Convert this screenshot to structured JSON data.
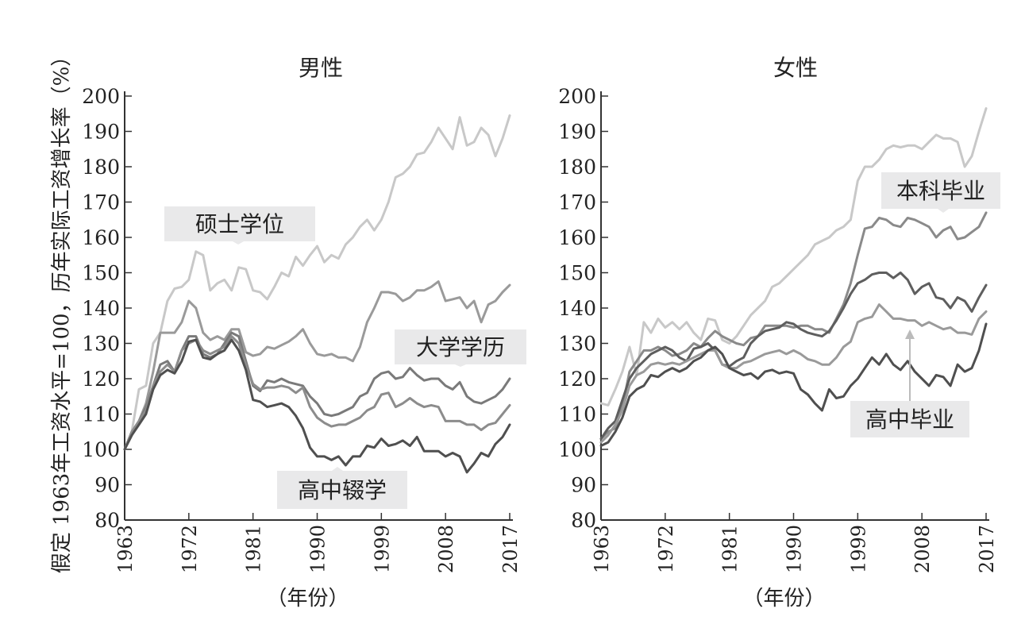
{
  "ylabel": "假定 1963年工资水平=100，历年实际工资增长率（%）",
  "xlabel": "（年份）",
  "colors": {
    "axis": "#333333",
    "label_box": "#e9e9ea",
    "series_lightest": "#c8c8c8",
    "series_light": "#9a9a9a",
    "series_mid": "#7a7a7a",
    "series_dark": "#4f4f4f"
  },
  "chart_data": [
    {
      "type": "line",
      "title": "男性",
      "x_ticks": [
        "1963",
        "1972",
        "1981",
        "1990",
        "1999",
        "2008",
        "2017"
      ],
      "y_ticks": [
        "80",
        "90",
        "100",
        "110",
        "120",
        "130",
        "140",
        "150",
        "160",
        "170",
        "180",
        "190",
        "200"
      ],
      "xlim": [
        1963,
        2017
      ],
      "ylim": [
        80,
        200
      ],
      "x": [
        1963,
        1964,
        1965,
        1966,
        1967,
        1968,
        1969,
        1970,
        1971,
        1972,
        1973,
        1974,
        1975,
        1976,
        1977,
        1978,
        1979,
        1980,
        1981,
        1982,
        1983,
        1984,
        1985,
        1986,
        1987,
        1988,
        1989,
        1990,
        1991,
        1992,
        1993,
        1994,
        1995,
        1996,
        1997,
        1998,
        1999,
        2000,
        2001,
        2002,
        2003,
        2004,
        2005,
        2006,
        2007,
        2008,
        2009,
        2010,
        2011,
        2012,
        2013,
        2014,
        2015,
        2016,
        2017
      ],
      "series": [
        {
          "name": "硕士学位",
          "color": "#c8c8c8",
          "values": [
            100,
            105,
            117,
            118,
            130,
            133,
            142,
            145.5,
            146,
            148,
            156,
            155,
            145,
            147,
            148,
            145,
            151.5,
            151,
            145,
            144.5,
            142.5,
            146,
            150,
            149,
            154.5,
            152,
            155,
            157.5,
            153,
            155,
            154,
            158,
            160,
            163,
            165,
            162,
            165,
            170,
            177,
            178,
            180,
            183.5,
            184,
            187,
            191,
            188,
            185,
            194,
            186,
            187,
            191,
            189,
            183,
            188,
            194.5
          ]
        },
        {
          "name": "",
          "color": "#9a9a9a",
          "values": [
            100,
            104,
            108,
            113,
            122,
            133,
            133,
            133,
            136,
            142,
            140,
            133,
            131,
            132,
            131,
            134,
            134,
            127.5,
            126.5,
            127,
            129,
            128.5,
            129.5,
            130.5,
            132,
            134,
            130,
            127,
            126.5,
            127,
            126,
            126,
            125,
            129,
            136,
            140,
            144.5,
            144.5,
            144,
            142,
            143,
            145,
            145,
            146,
            147.5,
            142,
            142.5,
            143,
            140,
            142,
            136,
            141,
            142,
            144.5,
            146.5
          ]
        },
        {
          "name": "大学学历",
          "color": "#7a7a7a",
          "values": [
            100,
            105,
            108,
            112,
            118,
            124,
            125,
            122,
            128,
            132,
            132,
            127,
            126,
            127,
            130,
            133,
            132,
            125,
            118,
            116.5,
            119.5,
            119,
            120,
            119,
            118.5,
            118,
            115,
            113,
            110,
            109.5,
            110,
            111,
            112,
            115,
            116,
            120,
            121.5,
            122,
            120,
            120.5,
            123,
            121,
            119.5,
            120,
            120,
            118,
            117,
            119,
            115,
            113.5,
            113,
            114,
            115,
            117,
            120
          ]
        },
        {
          "name": "",
          "color": "#8c8c8c",
          "values": [
            100,
            105,
            108,
            111,
            118,
            122,
            124,
            122,
            128,
            130,
            131,
            128,
            127,
            128,
            129,
            132,
            130,
            124,
            118.5,
            117,
            117.5,
            117.5,
            118,
            117.5,
            116,
            117.5,
            112,
            109,
            107.5,
            106.5,
            107,
            107,
            108,
            109,
            111,
            112,
            115.5,
            116,
            112,
            113,
            114.5,
            113,
            112,
            112.5,
            112,
            108,
            108,
            108,
            107,
            107,
            105.5,
            107,
            107.5,
            110,
            112.5
          ]
        },
        {
          "name": "高中辍学",
          "color": "#4f4f4f",
          "values": [
            100,
            104,
            107,
            110,
            117,
            121,
            122.5,
            121.5,
            125,
            130.5,
            131,
            126,
            125.5,
            127,
            128,
            131,
            128,
            122.5,
            114,
            113.5,
            112,
            112.5,
            113,
            112,
            109.5,
            106,
            100.5,
            98,
            98,
            97,
            98,
            95.5,
            98,
            98,
            101,
            100.5,
            103,
            101,
            101.5,
            102.5,
            101,
            103.5,
            99.5,
            99.5,
            99.5,
            98,
            99,
            98,
            93.5,
            96,
            99,
            98,
            101.5,
            103.5,
            107
          ]
        }
      ],
      "annotations": [
        "硕士学位",
        "大学学历",
        "高中辍学"
      ]
    },
    {
      "type": "line",
      "title": "女性",
      "x_ticks": [
        "1963",
        "1972",
        "1981",
        "1990",
        "1999",
        "2008",
        "2017"
      ],
      "y_ticks": [
        "80",
        "90",
        "100",
        "110",
        "120",
        "130",
        "140",
        "150",
        "160",
        "170",
        "180",
        "190",
        "200"
      ],
      "xlim": [
        1963,
        2017
      ],
      "ylim": [
        80,
        200
      ],
      "x": [
        1963,
        1964,
        1965,
        1966,
        1967,
        1968,
        1969,
        1970,
        1971,
        1972,
        1973,
        1974,
        1975,
        1976,
        1977,
        1978,
        1979,
        1980,
        1981,
        1982,
        1983,
        1984,
        1985,
        1986,
        1987,
        1988,
        1989,
        1990,
        1991,
        1992,
        1993,
        1994,
        1995,
        1996,
        1997,
        1998,
        1999,
        2000,
        2001,
        2002,
        2003,
        2004,
        2005,
        2006,
        2007,
        2008,
        2009,
        2010,
        2011,
        2012,
        2013,
        2014,
        2015,
        2016,
        2017
      ],
      "series": [
        {
          "name": "本科毕业",
          "color": "#c8c8c8",
          "values": [
            113,
            112.5,
            117,
            122,
            129,
            121,
            136,
            133,
            137,
            134.5,
            136,
            134,
            136,
            133,
            131,
            137,
            136.5,
            131,
            130,
            132,
            135,
            138,
            140,
            142,
            146,
            147,
            149,
            151,
            153,
            155,
            158,
            159,
            160,
            162,
            163,
            165,
            176,
            180,
            180,
            182,
            185,
            186,
            185.5,
            186,
            186,
            185,
            187,
            189,
            188,
            188,
            187,
            180,
            183,
            190,
            196.5
          ]
        },
        {
          "name": "",
          "color": "#8a8a8a",
          "values": [
            103,
            105,
            106,
            112,
            122,
            125,
            128,
            128,
            129,
            128,
            126.5,
            127,
            128,
            130,
            129,
            131.5,
            133.5,
            132,
            131,
            130,
            129.5,
            131.5,
            132,
            135,
            135,
            135,
            135,
            134.5,
            135,
            135,
            134,
            134,
            133,
            137,
            141,
            147,
            155,
            162.5,
            163,
            165.5,
            165,
            163.5,
            163,
            165.5,
            165,
            164,
            163,
            160,
            162,
            163,
            159.5,
            160,
            161.5,
            163,
            167
          ]
        },
        {
          "name": "",
          "color": "#5e5e5e",
          "values": [
            103,
            106,
            108,
            114,
            120,
            123,
            125,
            127,
            128,
            129,
            128,
            126,
            125,
            128.5,
            129,
            130,
            128,
            124,
            123.5,
            125,
            126,
            130,
            132,
            133.5,
            134,
            134.5,
            136,
            135.5,
            134,
            133,
            132.5,
            132,
            133.5,
            136.5,
            140,
            144,
            147,
            148,
            149.5,
            150,
            150,
            148.5,
            150,
            148,
            144,
            146,
            147,
            143,
            142.5,
            140,
            143,
            142,
            139,
            143,
            146.5
          ]
        },
        {
          "name": "高中毕业",
          "color": "#9a9a9a",
          "values": [
            102,
            104,
            107,
            111,
            118,
            121,
            122,
            124,
            124.5,
            124,
            124.5,
            124,
            125,
            126,
            127,
            128,
            128,
            124,
            123,
            123,
            124.5,
            125,
            126,
            127,
            127.5,
            128,
            127,
            128,
            127,
            125.5,
            125,
            124,
            124,
            126,
            129,
            130.5,
            136,
            137,
            137.5,
            141,
            139,
            137,
            137,
            136.5,
            136.5,
            135,
            136,
            135,
            134,
            134.5,
            133,
            133,
            132.5,
            137,
            139
          ]
        },
        {
          "name": "",
          "color": "#4f4f4f",
          "values": [
            101,
            102,
            105,
            109,
            115,
            117,
            118,
            121,
            120.5,
            122,
            123,
            122,
            123,
            125,
            126,
            128,
            129,
            127,
            123,
            122,
            121,
            121.5,
            120,
            122,
            122.5,
            121.5,
            122,
            121.5,
            117,
            115.5,
            113,
            111,
            117,
            114.5,
            115,
            118,
            120,
            123,
            126,
            124,
            127,
            124,
            122.5,
            125,
            122,
            120,
            118,
            121,
            120.5,
            118,
            124,
            122,
            123,
            128,
            135.5
          ]
        }
      ],
      "annotations": [
        "本科毕业",
        "高中毕业"
      ]
    }
  ]
}
